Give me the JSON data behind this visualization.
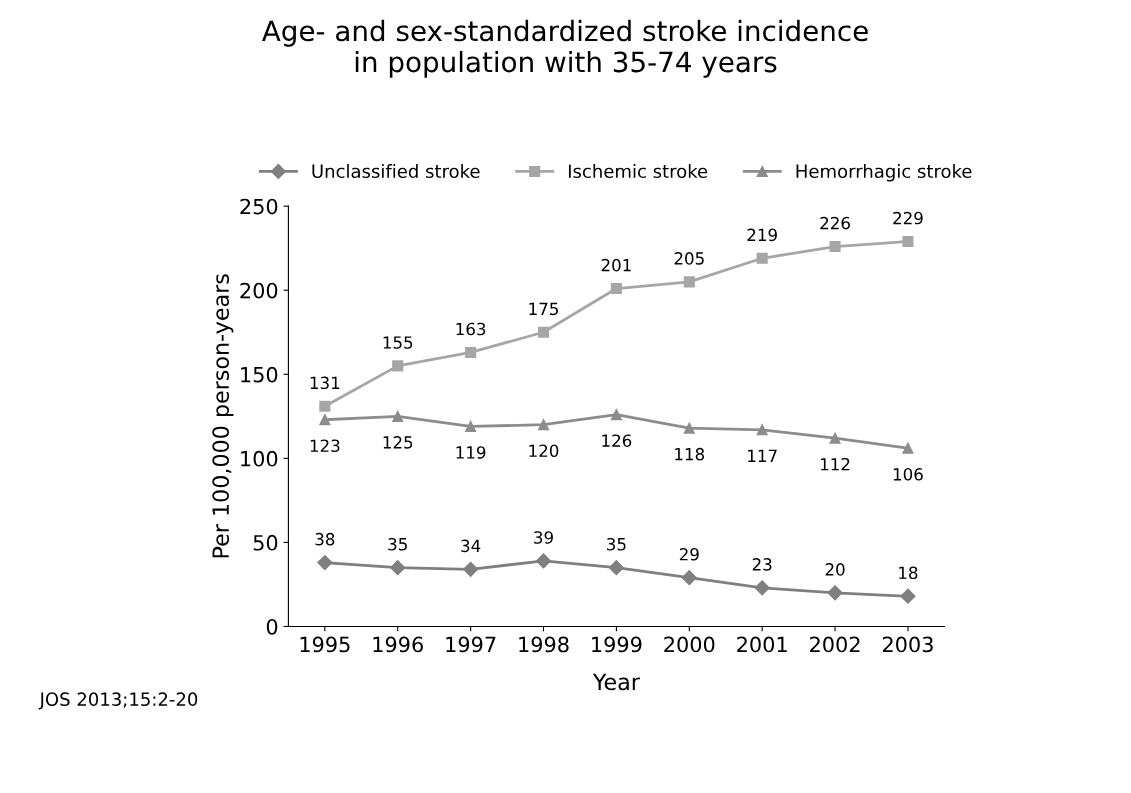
{
  "chart_data": {
    "type": "line",
    "title": "Age- and sex-standardized stroke incidence\nin population with 35-74 years",
    "categories": [
      "1995",
      "1996",
      "1997",
      "1998",
      "1999",
      "2000",
      "2001",
      "2002",
      "2003"
    ],
    "xlabel": "Year",
    "ylabel": "Per 100,000 person-years",
    "series": [
      {
        "name": "Unclassified stroke",
        "color": "#7f7f7f",
        "marker": "diamond",
        "values": [
          38,
          35,
          34,
          39,
          35,
          29,
          23,
          20,
          18
        ]
      },
      {
        "name": "Ischemic stroke",
        "color": "#a6a6a6",
        "marker": "square",
        "values": [
          131,
          155,
          163,
          175,
          201,
          205,
          219,
          226,
          229
        ]
      },
      {
        "name": "Hemorrhagic stroke",
        "color": "#8c8c8c",
        "marker": "triangle",
        "values": [
          123,
          125,
          119,
          120,
          126,
          118,
          117,
          112,
          106
        ]
      }
    ],
    "ylim": [
      0,
      250
    ],
    "yticks": [
      0,
      50,
      100,
      150,
      200,
      250
    ],
    "data_labels": true,
    "legend": "top",
    "grid": false,
    "annotations": [
      "JOS 2013;15:2-20"
    ]
  }
}
